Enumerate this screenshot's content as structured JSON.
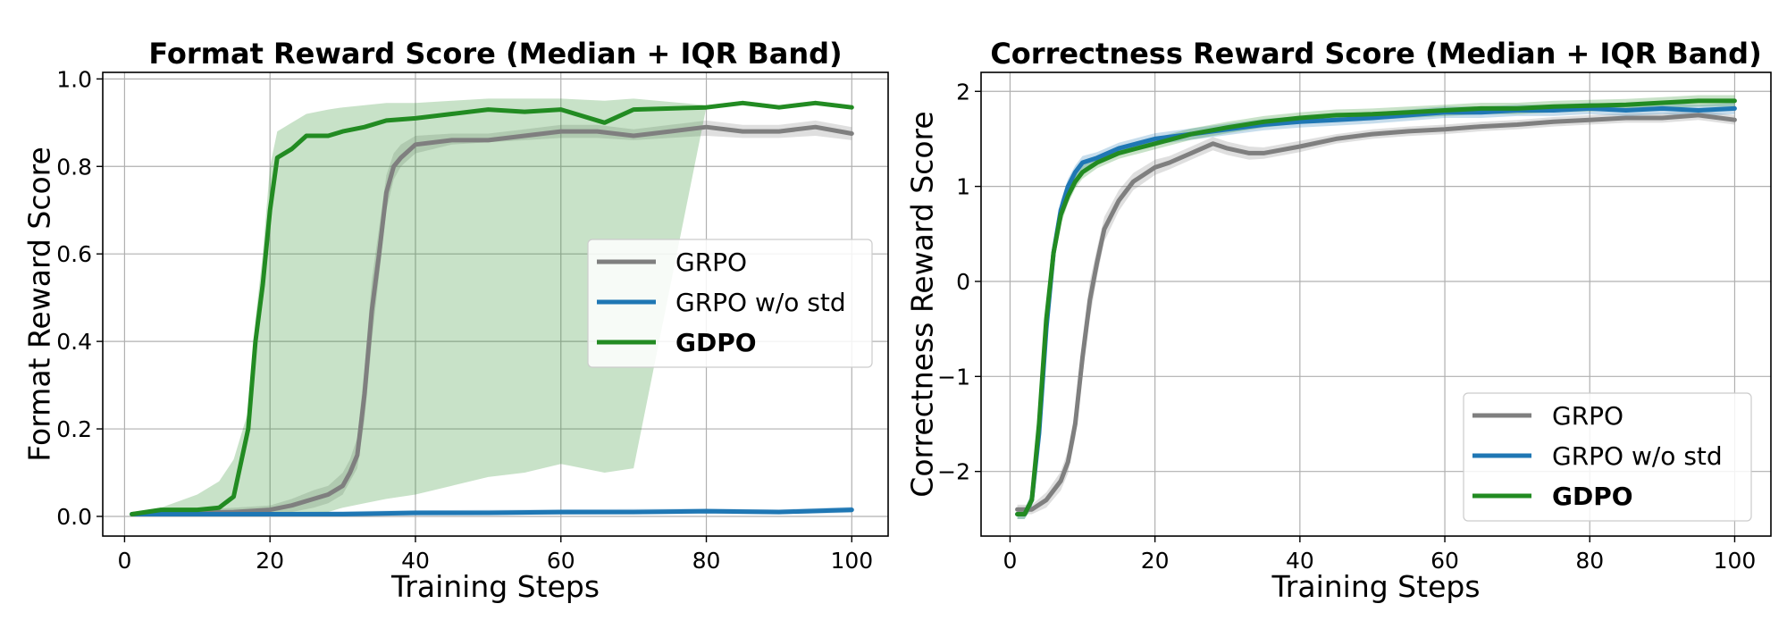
{
  "chart_data": [
    {
      "type": "line",
      "title": "Format Reward Score (Median + IQR Band)",
      "xlabel": "Training Steps",
      "ylabel": "Format Reward Score",
      "xlim": [
        -3,
        105
      ],
      "ylim": [
        -0.045,
        1.015
      ],
      "xticks": [
        0,
        20,
        40,
        60,
        80,
        100
      ],
      "yticks": [
        0.0,
        0.2,
        0.4,
        0.6,
        0.8,
        1.0
      ],
      "xtick_labels": [
        "0",
        "20",
        "40",
        "60",
        "80",
        "100"
      ],
      "ytick_labels": [
        "0.0",
        "0.2",
        "0.4",
        "0.6",
        "0.8",
        "1.0"
      ],
      "grid": true,
      "legend_position": "center-right",
      "series": [
        {
          "name": "GRPO",
          "color": "#7f7f7f",
          "x": [
            1,
            5,
            10,
            15,
            20,
            23,
            26,
            28,
            30,
            31,
            32,
            33,
            34,
            35,
            36,
            37,
            38,
            40,
            45,
            50,
            55,
            60,
            65,
            70,
            75,
            80,
            85,
            90,
            95,
            100
          ],
          "values": [
            0.005,
            0.01,
            0.008,
            0.01,
            0.015,
            0.025,
            0.04,
            0.05,
            0.07,
            0.1,
            0.14,
            0.28,
            0.47,
            0.6,
            0.74,
            0.8,
            0.82,
            0.85,
            0.86,
            0.86,
            0.87,
            0.88,
            0.88,
            0.87,
            0.88,
            0.89,
            0.88,
            0.88,
            0.89,
            0.875
          ],
          "band_lower": [
            0.0,
            0.0,
            0.0,
            0.0,
            0.005,
            0.01,
            0.02,
            0.03,
            0.05,
            0.08,
            0.11,
            0.22,
            0.4,
            0.55,
            0.7,
            0.77,
            0.8,
            0.83,
            0.85,
            0.855,
            0.86,
            0.865,
            0.865,
            0.86,
            0.865,
            0.87,
            0.865,
            0.865,
            0.87,
            0.86
          ],
          "band_upper": [
            0.01,
            0.015,
            0.015,
            0.02,
            0.025,
            0.04,
            0.06,
            0.07,
            0.1,
            0.13,
            0.18,
            0.34,
            0.54,
            0.66,
            0.78,
            0.83,
            0.85,
            0.87,
            0.875,
            0.875,
            0.885,
            0.895,
            0.895,
            0.885,
            0.895,
            0.905,
            0.895,
            0.895,
            0.905,
            0.89
          ]
        },
        {
          "name": "GRPO w/o std",
          "color": "#1f77b4",
          "x": [
            1,
            10,
            20,
            30,
            40,
            50,
            60,
            70,
            80,
            90,
            100
          ],
          "values": [
            0.005,
            0.005,
            0.005,
            0.005,
            0.008,
            0.008,
            0.01,
            0.01,
            0.012,
            0.01,
            0.015
          ],
          "band_lower": [
            0.0,
            0.0,
            0.0,
            0.0,
            0.002,
            0.003,
            0.004,
            0.005,
            0.006,
            0.005,
            0.008
          ],
          "band_upper": [
            0.01,
            0.01,
            0.01,
            0.012,
            0.014,
            0.015,
            0.016,
            0.017,
            0.018,
            0.016,
            0.022
          ]
        },
        {
          "name": "GDPO",
          "color": "#228b22",
          "bold_legend": true,
          "x": [
            1,
            5,
            10,
            13,
            15,
            17,
            18,
            19,
            20,
            21,
            23,
            25,
            28,
            30,
            33,
            36,
            40,
            45,
            50,
            55,
            60,
            66,
            70,
            80,
            85,
            90,
            95,
            100
          ],
          "values": [
            0.005,
            0.015,
            0.015,
            0.02,
            0.045,
            0.2,
            0.4,
            0.53,
            0.7,
            0.82,
            0.84,
            0.87,
            0.87,
            0.88,
            0.89,
            0.905,
            0.91,
            0.92,
            0.93,
            0.925,
            0.93,
            0.9,
            0.93,
            0.935,
            0.945,
            0.935,
            0.945,
            0.935
          ],
          "band_lower": [
            0.0,
            0.0,
            0.0,
            0.0,
            0.0,
            0.0,
            0.0,
            0.0,
            0.0,
            0.0,
            0.0,
            0.005,
            0.01,
            0.02,
            0.03,
            0.04,
            0.05,
            0.07,
            0.09,
            0.1,
            0.12,
            0.1,
            0.11,
            0.935,
            0.945,
            0.935,
            0.945,
            0.935
          ],
          "band_upper": [
            0.01,
            0.02,
            0.05,
            0.08,
            0.13,
            0.24,
            0.45,
            0.6,
            0.8,
            0.88,
            0.9,
            0.92,
            0.93,
            0.935,
            0.94,
            0.945,
            0.945,
            0.95,
            0.955,
            0.955,
            0.955,
            0.95,
            0.955,
            0.94,
            0.95,
            0.94,
            0.95,
            0.94
          ]
        }
      ]
    },
    {
      "type": "line",
      "title": "Correctness Reward Score (Median + IQR Band)",
      "xlabel": "Training Steps",
      "ylabel": "Correctness Reward Score",
      "xlim": [
        -4,
        105
      ],
      "ylim": [
        -2.68,
        2.2
      ],
      "xticks": [
        0,
        20,
        40,
        60,
        80,
        100
      ],
      "yticks": [
        -2,
        -1,
        0,
        1,
        2
      ],
      "xtick_labels": [
        "0",
        "20",
        "40",
        "60",
        "80",
        "100"
      ],
      "ytick_labels": [
        "−2",
        "−1",
        "0",
        "1",
        "2"
      ],
      "grid": true,
      "legend_position": "lower-right",
      "series": [
        {
          "name": "GRPO",
          "color": "#7f7f7f",
          "x": [
            1,
            3,
            5,
            7,
            8,
            9,
            10,
            11,
            12,
            13,
            15,
            17,
            20,
            22,
            25,
            28,
            30,
            33,
            35,
            40,
            45,
            50,
            55,
            60,
            65,
            70,
            75,
            80,
            85,
            90,
            95,
            100
          ],
          "values": [
            -2.4,
            -2.4,
            -2.3,
            -2.1,
            -1.9,
            -1.5,
            -0.8,
            -0.2,
            0.2,
            0.55,
            0.85,
            1.05,
            1.2,
            1.25,
            1.35,
            1.45,
            1.4,
            1.35,
            1.35,
            1.42,
            1.5,
            1.55,
            1.58,
            1.6,
            1.63,
            1.65,
            1.68,
            1.7,
            1.72,
            1.72,
            1.75,
            1.7
          ],
          "band_lower": [
            -2.45,
            -2.45,
            -2.38,
            -2.2,
            -2.02,
            -1.65,
            -1.0,
            -0.4,
            0.05,
            0.42,
            0.74,
            0.96,
            1.12,
            1.18,
            1.28,
            1.38,
            1.33,
            1.28,
            1.29,
            1.36,
            1.45,
            1.5,
            1.53,
            1.55,
            1.58,
            1.6,
            1.63,
            1.65,
            1.67,
            1.67,
            1.7,
            1.65
          ],
          "band_upper": [
            -2.35,
            -2.35,
            -2.22,
            -2.0,
            -1.78,
            -1.35,
            -0.6,
            0.0,
            0.35,
            0.68,
            0.96,
            1.14,
            1.28,
            1.32,
            1.42,
            1.52,
            1.47,
            1.42,
            1.41,
            1.48,
            1.55,
            1.6,
            1.63,
            1.65,
            1.68,
            1.7,
            1.73,
            1.75,
            1.77,
            1.77,
            1.8,
            1.75
          ]
        },
        {
          "name": "GRPO w/o std",
          "color": "#1f77b4",
          "x": [
            1,
            2,
            3,
            4,
            5,
            6,
            7,
            8,
            9,
            10,
            12,
            15,
            20,
            25,
            30,
            35,
            40,
            45,
            50,
            55,
            60,
            65,
            70,
            75,
            80,
            85,
            90,
            95,
            100
          ],
          "values": [
            -2.45,
            -2.45,
            -2.3,
            -1.6,
            -0.5,
            0.3,
            0.75,
            1.0,
            1.15,
            1.25,
            1.3,
            1.4,
            1.5,
            1.55,
            1.6,
            1.65,
            1.68,
            1.7,
            1.72,
            1.75,
            1.78,
            1.78,
            1.8,
            1.8,
            1.82,
            1.8,
            1.82,
            1.8,
            1.82
          ],
          "band_lower": [
            -2.5,
            -2.5,
            -2.38,
            -1.75,
            -0.65,
            0.18,
            0.65,
            0.92,
            1.08,
            1.18,
            1.24,
            1.34,
            1.44,
            1.49,
            1.54,
            1.59,
            1.62,
            1.64,
            1.66,
            1.69,
            1.72,
            1.72,
            1.74,
            1.74,
            1.76,
            1.74,
            1.76,
            1.74,
            1.76
          ],
          "band_upper": [
            -2.4,
            -2.4,
            -2.22,
            -1.45,
            -0.35,
            0.42,
            0.85,
            1.08,
            1.22,
            1.32,
            1.36,
            1.46,
            1.56,
            1.61,
            1.66,
            1.71,
            1.74,
            1.76,
            1.78,
            1.81,
            1.84,
            1.84,
            1.86,
            1.86,
            1.88,
            1.86,
            1.88,
            1.86,
            1.88
          ]
        },
        {
          "name": "GDPO",
          "color": "#228b22",
          "bold_legend": true,
          "x": [
            1,
            2,
            3,
            4,
            5,
            6,
            7,
            8,
            9,
            10,
            12,
            15,
            20,
            25,
            30,
            35,
            40,
            45,
            50,
            55,
            60,
            65,
            70,
            75,
            80,
            85,
            90,
            95,
            100
          ],
          "values": [
            -2.45,
            -2.45,
            -2.3,
            -1.5,
            -0.4,
            0.3,
            0.7,
            0.9,
            1.05,
            1.15,
            1.25,
            1.35,
            1.45,
            1.55,
            1.62,
            1.68,
            1.72,
            1.75,
            1.76,
            1.78,
            1.8,
            1.82,
            1.82,
            1.84,
            1.85,
            1.86,
            1.88,
            1.9,
            1.9
          ],
          "band_lower": [
            -2.5,
            -2.5,
            -2.38,
            -1.65,
            -0.55,
            0.18,
            0.6,
            0.82,
            0.98,
            1.08,
            1.19,
            1.29,
            1.39,
            1.49,
            1.56,
            1.62,
            1.66,
            1.69,
            1.7,
            1.72,
            1.74,
            1.76,
            1.76,
            1.78,
            1.79,
            1.8,
            1.82,
            1.84,
            1.84
          ],
          "band_upper": [
            -2.4,
            -2.4,
            -2.22,
            -1.35,
            -0.25,
            0.42,
            0.8,
            0.98,
            1.12,
            1.22,
            1.31,
            1.41,
            1.51,
            1.61,
            1.68,
            1.74,
            1.78,
            1.81,
            1.82,
            1.84,
            1.86,
            1.88,
            1.88,
            1.9,
            1.91,
            1.92,
            1.94,
            1.96,
            1.96
          ]
        }
      ]
    }
  ]
}
